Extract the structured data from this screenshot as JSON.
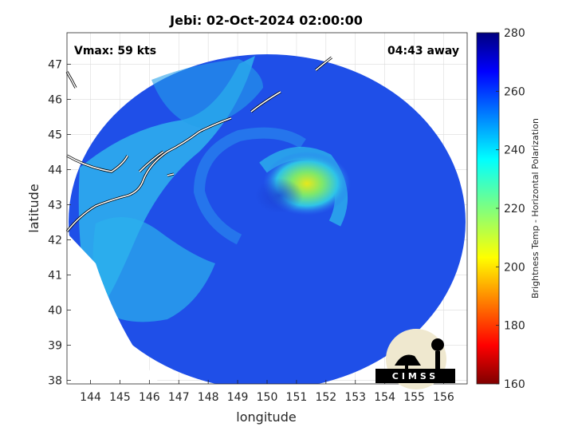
{
  "title": "Jebi: 02-Oct-2024 02:00:00",
  "annotations": {
    "vmax": "Vmax: 59 kts",
    "time_away": "04:43 away"
  },
  "logo_text": "CIMSS",
  "chart_data": {
    "type": "heatmap",
    "xlabel": "longitude",
    "ylabel": "latitude",
    "xlim": [
      143.2,
      156.8
    ],
    "ylim": [
      37.9,
      47.9
    ],
    "x_ticks": [
      "144",
      "145",
      "146",
      "147",
      "148",
      "149",
      "150",
      "151",
      "152",
      "153",
      "154",
      "155",
      "156"
    ],
    "y_ticks": [
      "38",
      "39",
      "40",
      "41",
      "42",
      "43",
      "44",
      "45",
      "46",
      "47"
    ],
    "grid": true,
    "swath_center": [
      150.4,
      42.9
    ],
    "storm_center": [
      151.1,
      43.2
    ],
    "colorbar": {
      "label": "Brightness Temp - Horizontal Polarization",
      "range": [
        160,
        280
      ],
      "ticks": [
        "160",
        "180",
        "200",
        "220",
        "240",
        "260",
        "280"
      ],
      "colormap": "jet"
    }
  },
  "colors": {
    "swath_base": "#1f4fe8",
    "warm_core": "#d8e61c",
    "coast": "#ffffff"
  }
}
